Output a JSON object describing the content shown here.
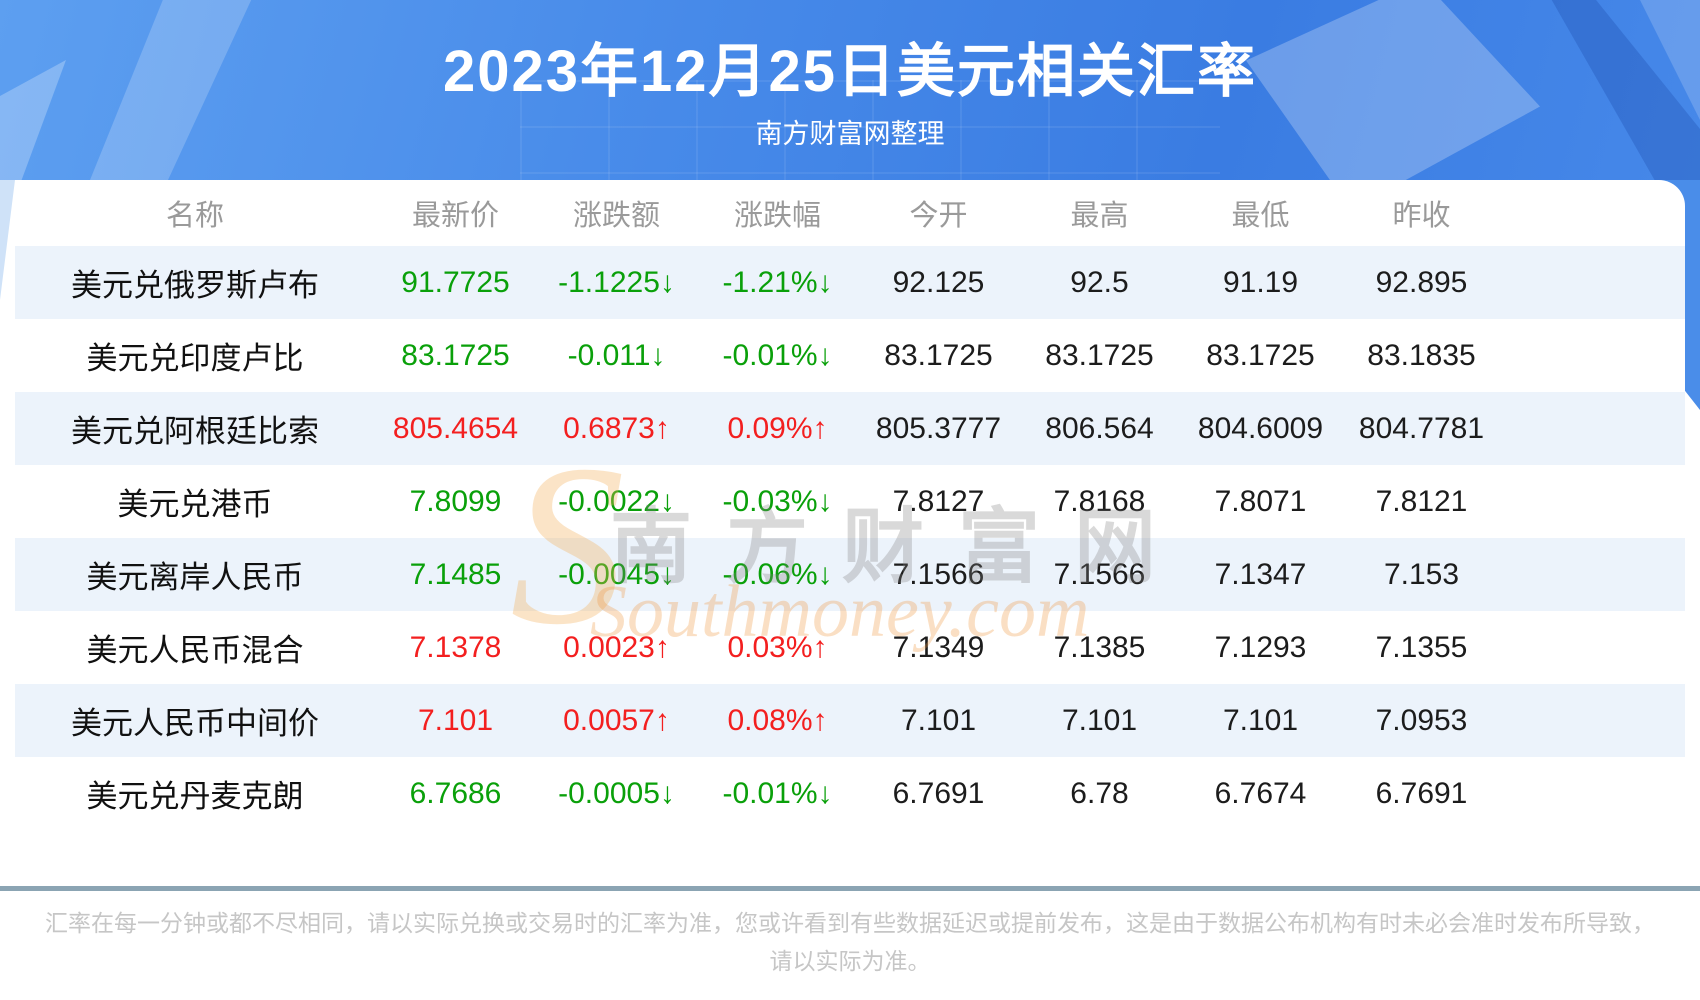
{
  "header": {
    "title": "2023年12月25日美元相关汇率",
    "subtitle": "南方财富网整理"
  },
  "table": {
    "columns": [
      "名称",
      "最新价",
      "涨跌额",
      "涨跌幅",
      "今开",
      "最高",
      "最低",
      "昨收"
    ],
    "rows": [
      {
        "name": "美元兑俄罗斯卢布",
        "latest": "91.7725",
        "change": "-1.1225↓",
        "pct": "-1.21%↓",
        "open": "92.125",
        "high": "92.5",
        "low": "91.19",
        "prev": "92.895",
        "trend": "down"
      },
      {
        "name": "美元兑印度卢比",
        "latest": "83.1725",
        "change": "-0.011↓",
        "pct": "-0.01%↓",
        "open": "83.1725",
        "high": "83.1725",
        "low": "83.1725",
        "prev": "83.1835",
        "trend": "down"
      },
      {
        "name": "美元兑阿根廷比索",
        "latest": "805.4654",
        "change": "0.6873↑",
        "pct": "0.09%↑",
        "open": "805.3777",
        "high": "806.564",
        "low": "804.6009",
        "prev": "804.7781",
        "trend": "up"
      },
      {
        "name": "美元兑港币",
        "latest": "7.8099",
        "change": "-0.0022↓",
        "pct": "-0.03%↓",
        "open": "7.8127",
        "high": "7.8168",
        "low": "7.8071",
        "prev": "7.8121",
        "trend": "down"
      },
      {
        "name": "美元离岸人民币",
        "latest": "7.1485",
        "change": "-0.0045↓",
        "pct": "-0.06%↓",
        "open": "7.1566",
        "high": "7.1566",
        "low": "7.1347",
        "prev": "7.153",
        "trend": "down"
      },
      {
        "name": "美元人民币混合",
        "latest": "7.1378",
        "change": "0.0023↑",
        "pct": "0.03%↑",
        "open": "7.1349",
        "high": "7.1385",
        "low": "7.1293",
        "prev": "7.1355",
        "trend": "up"
      },
      {
        "name": "美元人民币中间价",
        "latest": "7.101",
        "change": "0.0057↑",
        "pct": "0.08%↑",
        "open": "7.101",
        "high": "7.101",
        "low": "7.101",
        "prev": "7.0953",
        "trend": "up"
      },
      {
        "name": "美元兑丹麦克朗",
        "latest": "6.7686",
        "change": "-0.0005↓",
        "pct": "-0.01%↓",
        "open": "6.7691",
        "high": "6.78",
        "low": "6.7674",
        "prev": "6.7691",
        "trend": "down"
      }
    ]
  },
  "watermark": {
    "cn": "南方财富网",
    "en": "Southmoney.com",
    "glyph": "S"
  },
  "footer": {
    "line1": "汇率在每一分钟或都不尽相同，请以实际兑换或交易时的汇率为准，您或许看到有些数据延迟或提前发布，这是由于数据公布机构有时未必会准时发布所导致，",
    "line2": "请以实际为准。"
  },
  "colors": {
    "up_red": "#f31f1f",
    "down_green": "#0aa00a",
    "banner_blue": "#4487e8",
    "row_stripe": "#ecf3fb",
    "header_text_gray": "#9a9a9a",
    "separator_gray_blue": "#8ba4b3",
    "disclaimer_gray": "#c6c6c6"
  },
  "chart_data": {
    "type": "table",
    "title": "2023年12月25日美元相关汇率",
    "subtitle": "南方财富网整理",
    "columns": [
      "名称",
      "最新价",
      "涨跌额",
      "涨跌幅",
      "今开",
      "最高",
      "最低",
      "昨收"
    ],
    "rows": [
      [
        "美元兑俄罗斯卢布",
        "91.7725",
        "-1.1225↓",
        "-1.21%↓",
        "92.125",
        "92.5",
        "91.19",
        "92.895"
      ],
      [
        "美元兑印度卢比",
        "83.1725",
        "-0.011↓",
        "-0.01%↓",
        "83.1725",
        "83.1725",
        "83.1725",
        "83.1835"
      ],
      [
        "美元兑阿根廷比索",
        "805.4654",
        "0.6873↑",
        "0.09%↑",
        "805.3777",
        "806.564",
        "804.6009",
        "804.7781"
      ],
      [
        "美元兑港币",
        "7.8099",
        "-0.0022↓",
        "-0.03%↓",
        "7.8127",
        "7.8168",
        "7.8071",
        "7.8121"
      ],
      [
        "美元离岸人民币",
        "7.1485",
        "-0.0045↓",
        "-0.06%↓",
        "7.1566",
        "7.1566",
        "7.1347",
        "7.153"
      ],
      [
        "美元人民币混合",
        "7.1378",
        "0.0023↑",
        "0.03%↑",
        "7.1349",
        "7.1385",
        "7.1293",
        "7.1355"
      ],
      [
        "美元人民币中间价",
        "7.101",
        "0.0057↑",
        "0.08%↑",
        "7.101",
        "7.101",
        "7.101",
        "7.0953"
      ],
      [
        "美元兑丹麦克朗",
        "6.7686",
        "-0.0005↓",
        "-0.01%↓",
        "6.7691",
        "6.78",
        "6.7674",
        "6.7691"
      ]
    ]
  }
}
